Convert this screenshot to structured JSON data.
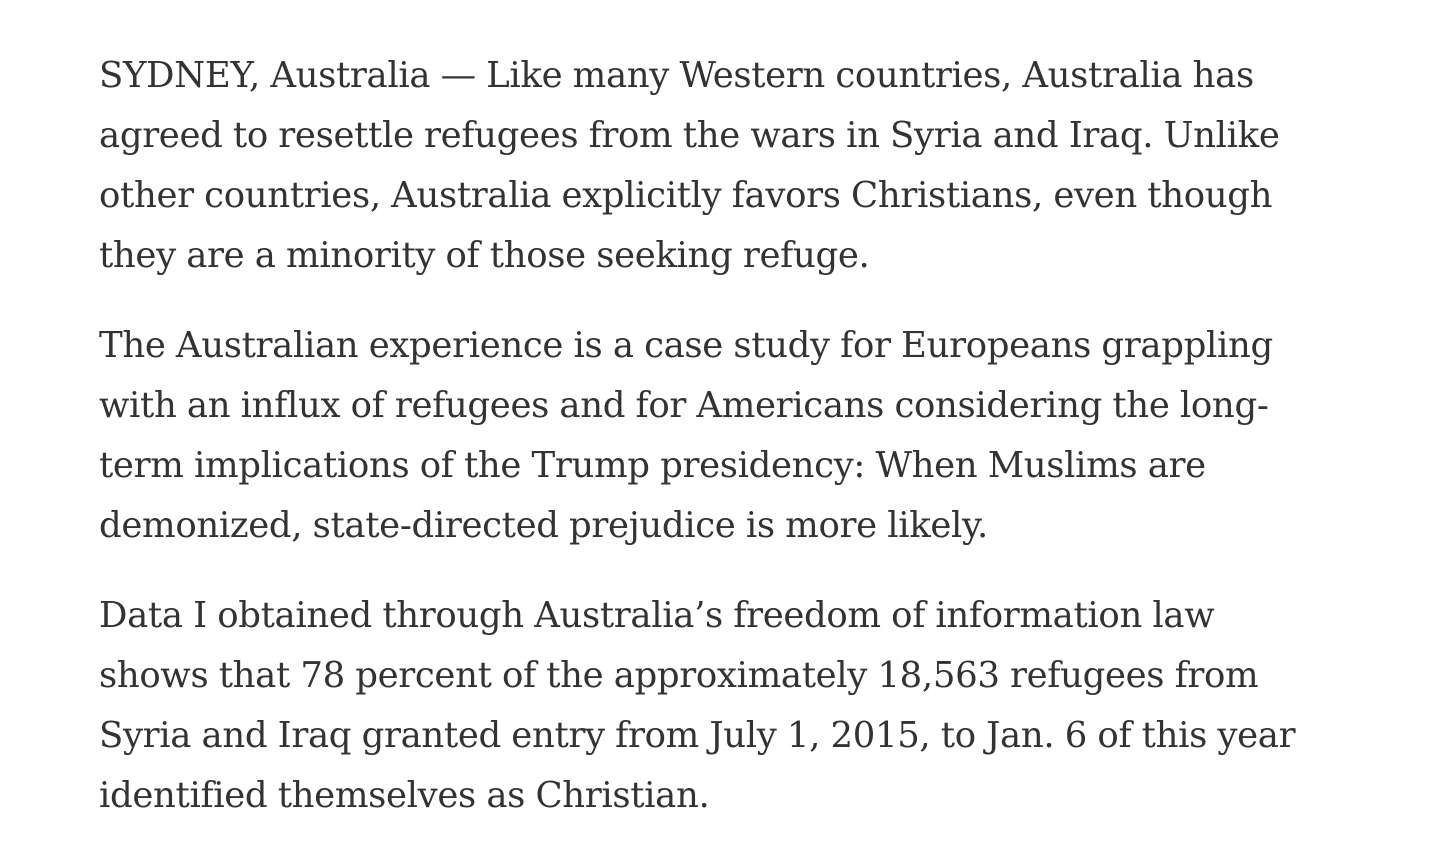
{
  "article": {
    "paragraphs": [
      {
        "lines": [
          "SYDNEY, Australia — Like many Western countries, Australia has",
          "agreed to resettle refugees from the wars in Syria and Iraq. Unlike",
          "other countries, Australia explicitly favors Christians, even though",
          "they are a minority of those seeking refuge."
        ]
      },
      {
        "lines": [
          "The Australian experience is a case study for Europeans grappling",
          "with an influx of refugees and for Americans considering the long-",
          "term implications of the Trump presidency: When Muslims are",
          "demonized, state-directed prejudice is more likely."
        ]
      },
      {
        "lines": [
          "Data I obtained through Australia’s freedom of information law",
          "shows that 78 percent of the approximately 18,563 refugees from",
          "Syria and Iraq granted entry from July 1, 2015, to Jan. 6 of this year",
          "identified themselves as Christian."
        ]
      }
    ]
  }
}
